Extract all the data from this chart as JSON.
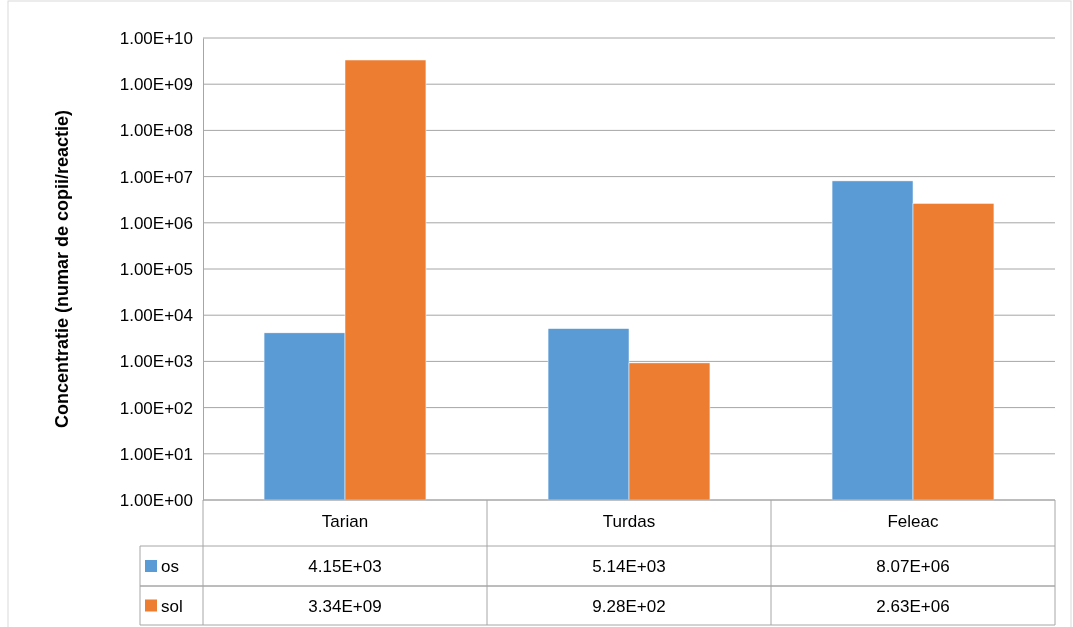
{
  "chart_data": {
    "type": "bar",
    "ylabel": "Concentratie (numar de copii/reactie)",
    "categories": [
      "Tarian",
      "Turdas",
      "Feleac"
    ],
    "series": [
      {
        "name": "os",
        "color": "#5b9bd5",
        "values": [
          4150,
          5140,
          8070000
        ],
        "value_labels": [
          "4.15E+03",
          "5.14E+03",
          "8.07E+06"
        ]
      },
      {
        "name": "sol",
        "color": "#ed7d31",
        "values": [
          3340000000,
          928,
          2630000
        ],
        "value_labels": [
          "3.34E+09",
          "9.28E+02",
          "2.63E+06"
        ]
      }
    ],
    "log": true,
    "ylim": [
      1,
      10000000000
    ],
    "yticks": [
      {
        "value": 1,
        "label": "1.00E+00"
      },
      {
        "value": 10,
        "label": "1.00E+01"
      },
      {
        "value": 100,
        "label": "1.00E+02"
      },
      {
        "value": 1000,
        "label": "1.00E+03"
      },
      {
        "value": 10000,
        "label": "1.00E+04"
      },
      {
        "value": 100000,
        "label": "1.00E+05"
      },
      {
        "value": 1000000,
        "label": "1.00E+06"
      },
      {
        "value": 10000000,
        "label": "1.00E+07"
      },
      {
        "value": 100000000,
        "label": "1.00E+08"
      },
      {
        "value": 1000000000,
        "label": "1.00E+09"
      },
      {
        "value": 10000000000,
        "label": "1.00E+10"
      }
    ],
    "grid": "y",
    "legend": "bottom"
  }
}
